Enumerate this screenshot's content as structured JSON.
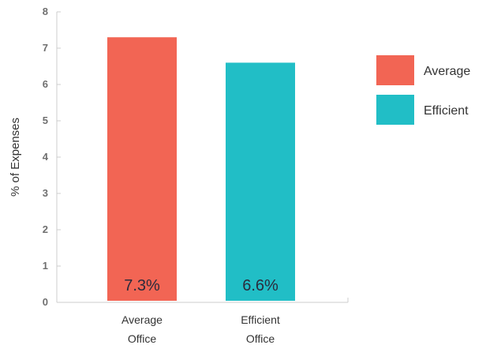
{
  "chart_data": {
    "type": "bar",
    "ylabel": "% of Expenses",
    "ylim": [
      0,
      8
    ],
    "y_ticks": [
      0,
      1,
      2,
      3,
      4,
      5,
      6,
      7,
      8
    ],
    "categories": [
      [
        "Average",
        "Office"
      ],
      [
        "Efficient",
        "Office"
      ]
    ],
    "values": [
      7.3,
      6.6
    ],
    "data_labels": [
      "7.3%",
      "6.6%"
    ],
    "colors": [
      "#f26554",
      "#21bec6"
    ],
    "legend": {
      "placement": "right",
      "entries": [
        {
          "label": "Average",
          "color": "#f26554"
        },
        {
          "label": "Efficient",
          "color": "#21bec6"
        }
      ]
    },
    "grid": false
  }
}
